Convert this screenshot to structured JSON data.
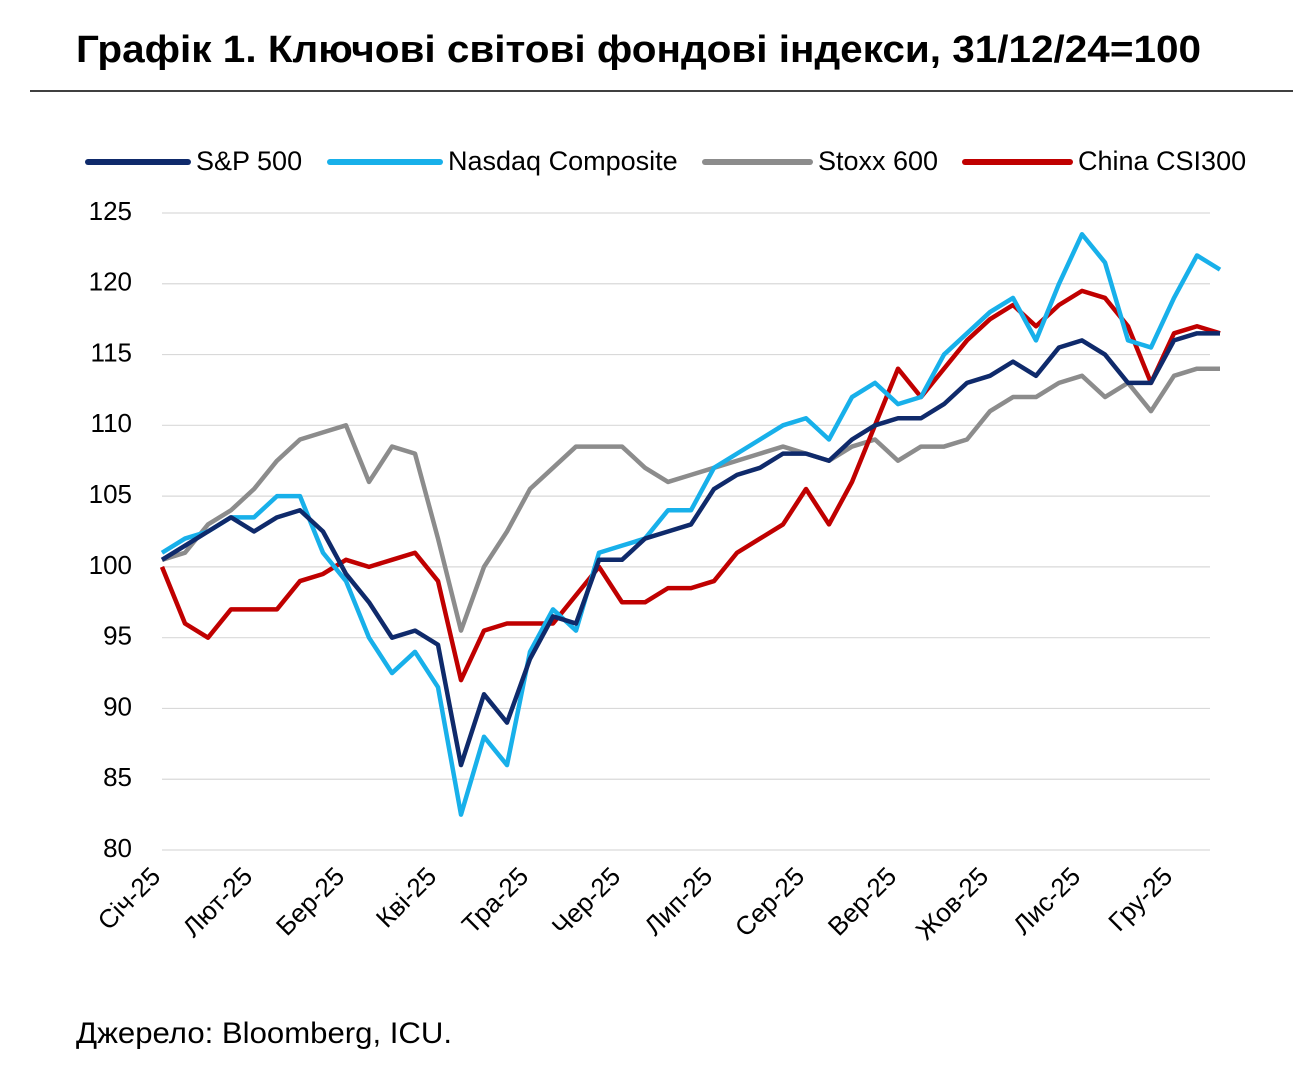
{
  "chart_data": {
    "type": "line",
    "title": "Графік 1. Ключові світові фондові індекси, 31/12/24=100",
    "source": "Джерело: Bloomberg, ICU.",
    "categories": [
      "Січ-25",
      null,
      null,
      null,
      "Лют-25",
      null,
      null,
      null,
      "Бер-25",
      null,
      null,
      null,
      "Кві-25",
      null,
      null,
      null,
      "Тра-25",
      null,
      null,
      null,
      "Чер-25",
      null,
      null,
      null,
      "Лип-25",
      null,
      null,
      null,
      "Сер-25",
      null,
      null,
      null,
      "Вер-25",
      null,
      null,
      null,
      "Жов-25",
      null,
      null,
      null,
      "Лис-25",
      null,
      null,
      null,
      "Гру-25",
      null,
      null
    ],
    "ylim": [
      80,
      125
    ],
    "yticks": [
      80,
      85,
      90,
      95,
      100,
      105,
      110,
      115,
      120,
      125
    ],
    "grid": true,
    "legend": "top",
    "series": [
      {
        "name": "S&P 500",
        "color": "#0f2a6b",
        "values": [
          100.5,
          101.5,
          102.5,
          103.5,
          102.5,
          103.5,
          104,
          102.5,
          99.5,
          97.5,
          95,
          95.5,
          94.5,
          86,
          91,
          89,
          93.5,
          96.5,
          96,
          100.5,
          100.5,
          102,
          102.5,
          103,
          105.5,
          106.5,
          107,
          108,
          108,
          107.5,
          109,
          110,
          110.5,
          110.5,
          111.5,
          113,
          113.5,
          114.5,
          113.5,
          115.5,
          116,
          115,
          113,
          113,
          116,
          116.5,
          116.5
        ]
      },
      {
        "name": "Nasdaq Composite",
        "color": "#18b0ea",
        "values": [
          101,
          102,
          102.5,
          103.5,
          103.5,
          105,
          105,
          101,
          99,
          95,
          92.5,
          94,
          91.5,
          82.5,
          88,
          86,
          94,
          97,
          95.5,
          101,
          101.5,
          102,
          104,
          104,
          107,
          108,
          109,
          110,
          110.5,
          109,
          112,
          113,
          111.5,
          112,
          115,
          116.5,
          118,
          119,
          116,
          120,
          123.5,
          121.5,
          116,
          115.5,
          119,
          122,
          121
        ]
      },
      {
        "name": "Stoxx 600",
        "color": "#8c8c8c",
        "values": [
          100.5,
          101,
          103,
          104,
          105.5,
          107.5,
          109,
          109.5,
          110,
          106,
          108.5,
          108,
          102,
          95.5,
          100,
          102.5,
          105.5,
          107,
          108.5,
          108.5,
          108.5,
          107,
          106,
          106.5,
          107,
          107.5,
          108,
          108.5,
          108,
          107.5,
          108.5,
          109,
          107.5,
          108.5,
          108.5,
          109,
          111,
          112,
          112,
          113,
          113.5,
          112,
          113,
          111,
          113.5,
          114,
          114
        ]
      },
      {
        "name": "China CSI300",
        "color": "#c00000",
        "values": [
          100,
          96,
          95,
          97,
          97,
          97,
          99,
          99.5,
          100.5,
          100,
          100.5,
          101,
          99,
          92,
          95.5,
          96,
          96,
          96,
          98,
          100,
          97.5,
          97.5,
          98.5,
          98.5,
          99,
          101,
          102,
          103,
          105.5,
          103,
          106,
          110,
          114,
          112,
          114,
          116,
          117.5,
          118.5,
          117,
          118.5,
          119.5,
          119,
          117,
          113,
          116.5,
          117,
          116.5
        ]
      }
    ]
  }
}
